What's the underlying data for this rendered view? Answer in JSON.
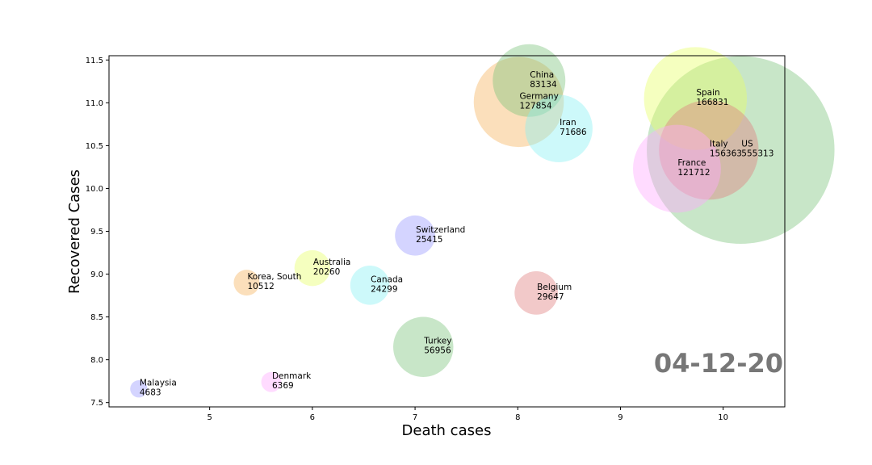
{
  "chart_data": {
    "type": "scatter",
    "xlabel": "Death cases",
    "ylabel": "Recovered Cases",
    "xlim": [
      4.02,
      10.6
    ],
    "ylim": [
      7.45,
      11.55
    ],
    "xticks": [
      5,
      6,
      7,
      8,
      9,
      10
    ],
    "yticks": [
      7.5,
      8.0,
      8.5,
      9.0,
      9.5,
      10.0,
      10.5,
      11.0,
      11.5
    ],
    "date_label": "04-12-20",
    "grid": false,
    "points": [
      {
        "country": "Malaysia",
        "value": "4683",
        "x": 4.31,
        "y": 7.66,
        "color": "#9999ff"
      },
      {
        "country": "Denmark",
        "value": "6369",
        "x": 5.6,
        "y": 7.74,
        "color": "#ffaaff"
      },
      {
        "country": "Korea, South",
        "value": "10512",
        "x": 5.36,
        "y": 8.9,
        "color": "#f5b35c"
      },
      {
        "country": "Australia",
        "value": "20260",
        "x": 6.0,
        "y": 9.07,
        "color": "#e8ff66"
      },
      {
        "country": "Canada",
        "value": "24299",
        "x": 6.56,
        "y": 8.87,
        "color": "#88f0f2"
      },
      {
        "country": "Switzerland",
        "value": "25415",
        "x": 7.0,
        "y": 9.45,
        "color": "#9999ff"
      },
      {
        "country": "Belgium",
        "value": "29647",
        "x": 8.18,
        "y": 8.78,
        "color": "#e07f7f"
      },
      {
        "country": "Turkey",
        "value": "56956",
        "x": 7.08,
        "y": 8.15,
        "color": "#7cc47c"
      },
      {
        "country": "Iran",
        "value": "71686",
        "x": 8.4,
        "y": 10.7,
        "color": "#88f0f2"
      },
      {
        "country": "China",
        "value": "83134",
        "x": 8.11,
        "y": 11.26,
        "color": "#7cc47c"
      },
      {
        "country": "France",
        "value": "121712",
        "x": 9.55,
        "y": 10.23,
        "color": "#ffaaff"
      },
      {
        "country": "Germany",
        "value": "127854",
        "x": 8.01,
        "y": 11.01,
        "color": "#f5b35c"
      },
      {
        "country": "Italy",
        "value": "156363",
        "x": 9.86,
        "y": 10.45,
        "color": "#e07f7f"
      },
      {
        "country": "Spain",
        "value": "166831",
        "x": 9.73,
        "y": 11.05,
        "color": "#e8ff66"
      },
      {
        "country": "US",
        "value": "555313",
        "x": 10.17,
        "y": 10.45,
        "color": "#7cc47c"
      }
    ]
  }
}
